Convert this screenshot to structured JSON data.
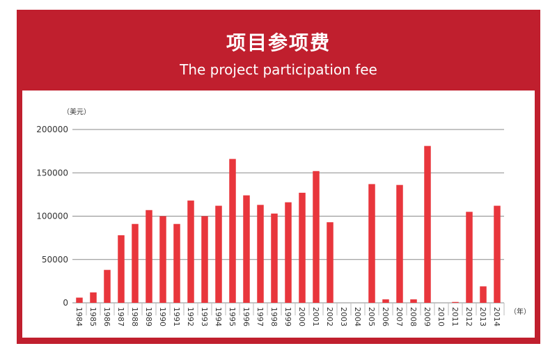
{
  "title": "项目参项费",
  "subtitle": "The project participation fee",
  "colors": {
    "frame": "#c01f2e",
    "bar": "#e8363c",
    "grid": "#8a8a8a",
    "text": "#333333"
  },
  "chart_data": {
    "type": "bar",
    "ylabel": "（美元）",
    "xlabel": "（年）",
    "ylim": [
      0,
      200000
    ],
    "yticks": [
      "0",
      "50000",
      "100000",
      "150000",
      "200000"
    ],
    "grid": true,
    "categories": [
      "1984",
      "1985",
      "1986",
      "1987",
      "1988",
      "1989",
      "1990",
      "1991",
      "1992",
      "1993",
      "1994",
      "1995",
      "1996",
      "1997",
      "1998",
      "1999",
      "2000",
      "2001",
      "2002",
      "2003",
      "2004",
      "2005",
      "2006",
      "2007",
      "2008",
      "2009",
      "2010",
      "2011",
      "2012",
      "2013",
      "2014"
    ],
    "values": [
      6000,
      12000,
      38000,
      78000,
      91000,
      107000,
      100000,
      91000,
      118000,
      100000,
      112000,
      166000,
      124000,
      113000,
      103000,
      116000,
      127000,
      152000,
      93000,
      0,
      0,
      137000,
      4000,
      136000,
      4000,
      181000,
      0,
      1000,
      105000,
      19000,
      112000
    ]
  }
}
